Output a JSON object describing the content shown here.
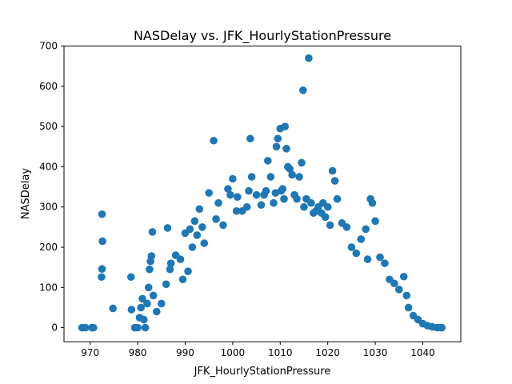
{
  "chart_data": {
    "type": "scatter",
    "title": "NASDelay vs. JFK_HourlyStationPressure",
    "xlabel": "JFK_HourlyStationPressure",
    "ylabel": "NASDelay",
    "xlim": [
      964.5,
      1048.0
    ],
    "ylim": [
      -35,
      700
    ],
    "xticks": [
      970,
      980,
      990,
      1000,
      1010,
      1020,
      1030,
      1040
    ],
    "yticks": [
      0,
      100,
      200,
      300,
      400,
      500,
      600,
      700
    ],
    "grid": false,
    "marker_color": "#1f77b4",
    "series": [
      {
        "x": [
          968.3,
          969.0,
          970.4,
          970.7,
          972.5,
          972.6,
          972.5,
          972.4,
          974.8,
          978.6,
          978.7,
          979.4,
          980.0,
          980.4,
          980.7,
          981.0,
          981.3,
          981.6,
          982.0,
          982.3,
          982.5,
          982.7,
          982.9,
          983.1,
          983.3,
          984.0,
          985.0,
          986.0,
          986.3,
          986.8,
          987.0,
          988.0,
          989.0,
          989.5,
          990.0,
          990.6,
          991.0,
          991.5,
          992.0,
          992.5,
          993.0,
          993.6,
          994.0,
          995.0,
          996.0,
          996.5,
          997.0,
          998.0,
          999.0,
          999.5,
          1000.0,
          1000.8,
          1001.0,
          1002.0,
          1003.0,
          1003.4,
          1003.7,
          1004.0,
          1005.0,
          1006.0,
          1006.6,
          1007.0,
          1007.4,
          1008.0,
          1008.6,
          1009.0,
          1009.2,
          1009.5,
          1010.0,
          1010.2,
          1010.5,
          1010.8,
          1011.0,
          1011.3,
          1011.6,
          1012.0,
          1012.5,
          1013.0,
          1013.5,
          1014.0,
          1014.5,
          1014.8,
          1015.0,
          1015.5,
          1016.0,
          1016.5,
          1017.0,
          1017.5,
          1018.0,
          1018.7,
          1019.0,
          1019.5,
          1020.0,
          1020.5,
          1021.0,
          1021.5,
          1022.0,
          1023.0,
          1024.0,
          1025.0,
          1026.0,
          1027.0,
          1028.0,
          1028.4,
          1029.0,
          1029.4,
          1030.0,
          1031.0,
          1032.0,
          1033.0,
          1034.0,
          1035.0,
          1036.0,
          1036.6,
          1037.0,
          1038.0,
          1039.0,
          1040.0,
          1041.0,
          1042.0,
          1043.0,
          1043.8,
          1044.0
        ],
        "y": [
          0,
          0,
          0,
          0,
          282,
          215,
          146,
          126,
          48,
          126,
          45,
          0,
          0,
          25,
          50,
          72,
          20,
          0,
          60,
          100,
          145,
          165,
          178,
          238,
          80,
          40,
          60,
          108,
          248,
          145,
          160,
          180,
          170,
          120,
          235,
          140,
          245,
          200,
          265,
          230,
          295,
          250,
          210,
          335,
          465,
          270,
          310,
          255,
          345,
          330,
          370,
          290,
          325,
          290,
          300,
          340,
          470,
          375,
          330,
          305,
          330,
          340,
          415,
          375,
          310,
          335,
          450,
          470,
          495,
          340,
          345,
          320,
          500,
          445,
          400,
          395,
          380,
          330,
          320,
          375,
          410,
          590,
          300,
          320,
          670,
          310,
          285,
          290,
          300,
          285,
          310,
          275,
          300,
          255,
          390,
          365,
          320,
          260,
          250,
          200,
          185,
          220,
          245,
          170,
          320,
          310,
          265,
          175,
          160,
          120,
          110,
          95,
          127,
          80,
          50,
          30,
          20,
          10,
          5,
          2,
          0,
          0,
          0
        ]
      }
    ]
  }
}
